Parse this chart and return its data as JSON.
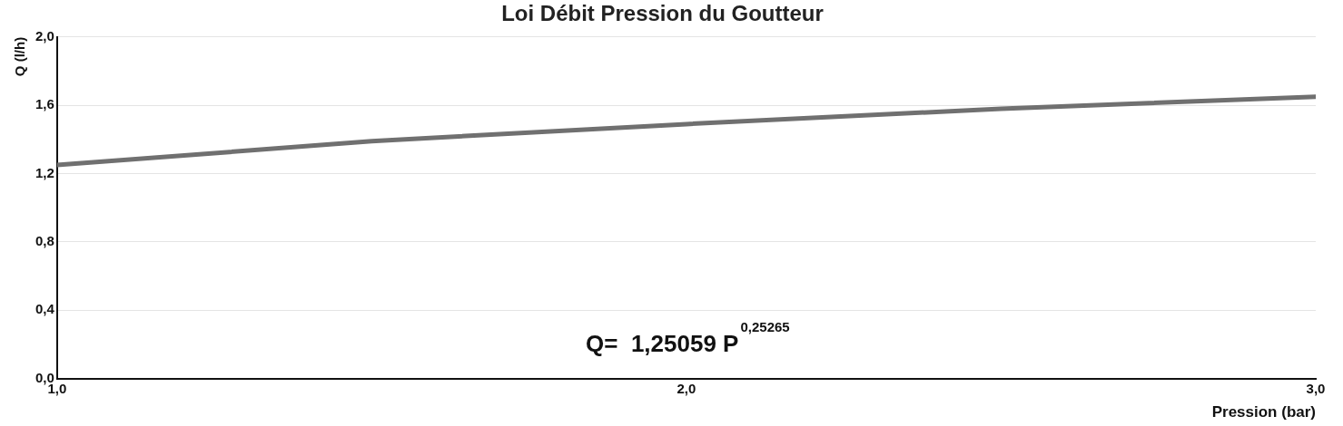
{
  "chart_data": {
    "type": "line",
    "title": "Loi Débit Pression du Goutteur",
    "xlabel": "Pression (bar)",
    "ylabel": "Q (l/h)",
    "x": [
      1.0,
      1.5,
      2.0,
      2.5,
      3.0
    ],
    "series": [
      {
        "color": "#707070",
        "values": [
          1.25,
          1.39,
          1.49,
          1.58,
          1.65
        ]
      }
    ],
    "xlim": [
      1,
      3
    ],
    "xticks": [
      {
        "value": 1,
        "label": "1,0"
      },
      {
        "value": 2,
        "label": "2,0"
      },
      {
        "value": 3,
        "label": "3,0"
      }
    ],
    "ylim": [
      0,
      2
    ],
    "yticks": [
      {
        "value": 0,
        "label": "0,0"
      },
      {
        "value": 0.4,
        "label": "0,4"
      },
      {
        "value": 0.8,
        "label": "0,8"
      },
      {
        "value": 1.2,
        "label": "1,2"
      },
      {
        "value": 1.6,
        "label": "1,6"
      },
      {
        "value": 2,
        "label": "2,0"
      }
    ],
    "grid": "y",
    "legend": false,
    "marker": "none",
    "line_style": "solid",
    "annotations": [
      "Q=  1,25059 P$^{0,25265}$"
    ]
  }
}
